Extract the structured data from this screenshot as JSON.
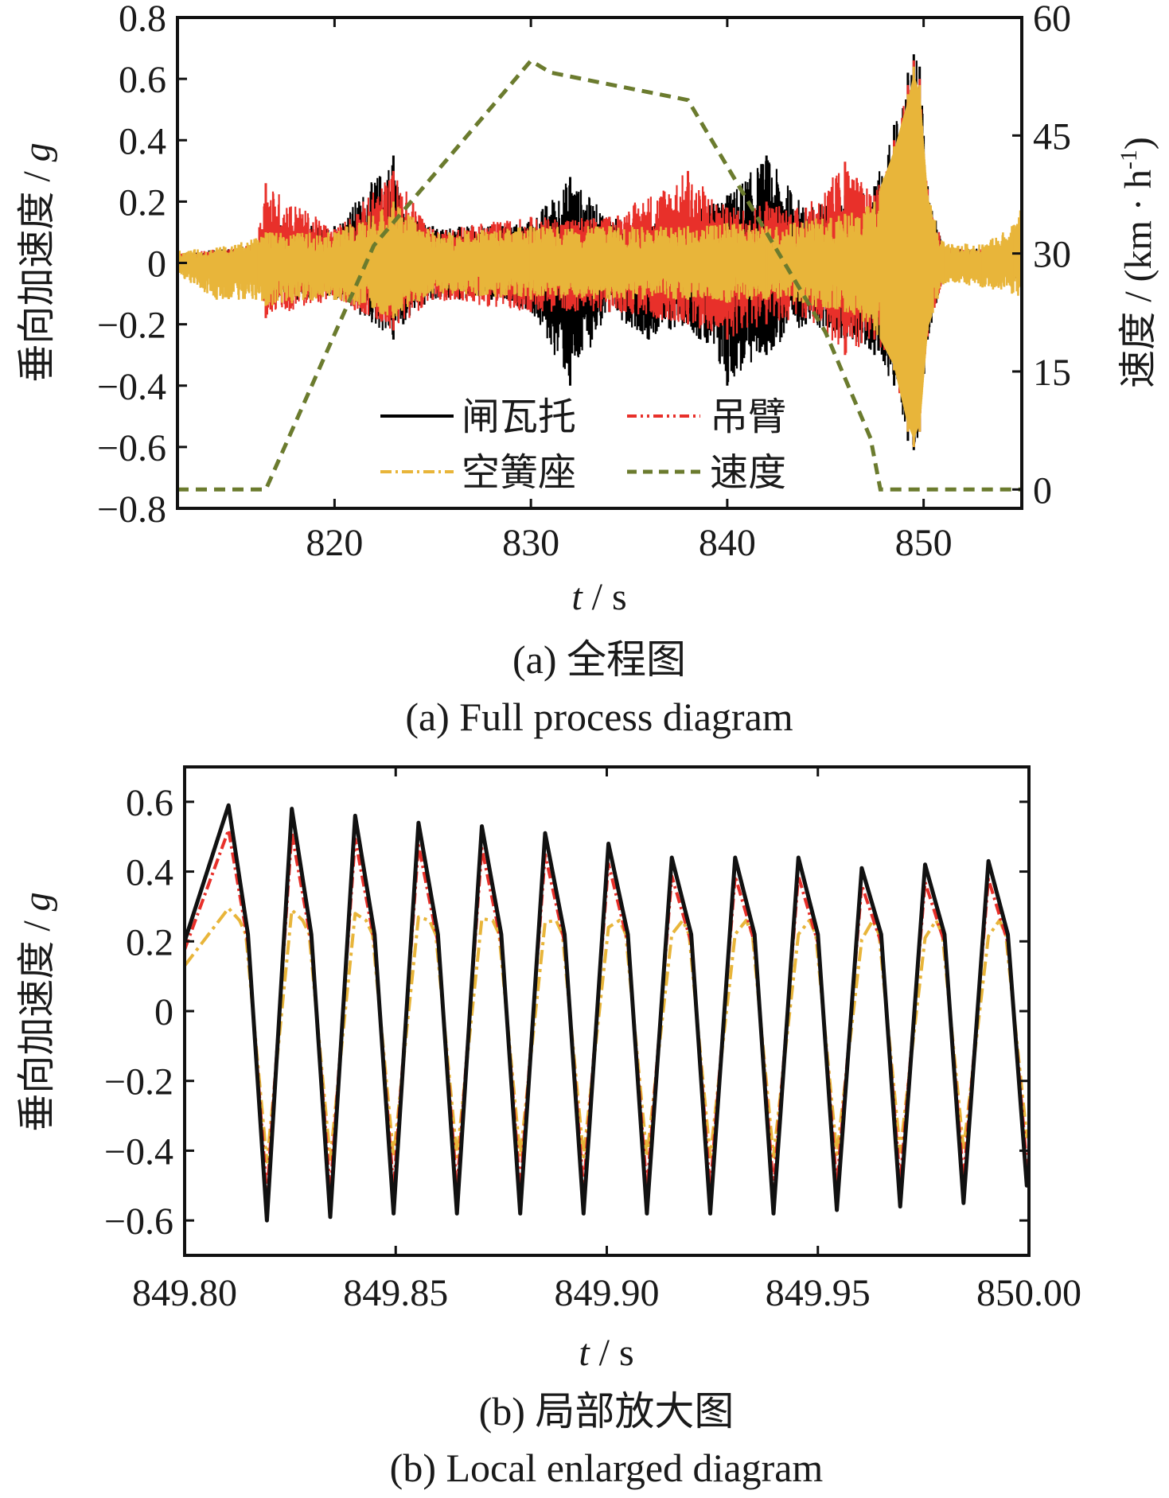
{
  "chart_data": [
    {
      "type": "line",
      "caption_cn": "(a)  全程图",
      "caption_en": "(a)  Full process diagram",
      "xlabel_var": "t",
      "xlabel_unit": " / s",
      "ylabel_left_prefix": "垂向加速度 / ",
      "ylabel_left_var": "g",
      "ylabel_right_prefix": "速度 / (km · h",
      "ylabel_right_sup": "-1",
      "ylabel_right_suffix": ")",
      "xlim": [
        812,
        855
      ],
      "ylim_left": [
        -0.8,
        0.8
      ],
      "ylim_right": [
        -2.4,
        60
      ],
      "xticks": [
        820,
        830,
        840,
        850
      ],
      "xtick_labels": [
        "820",
        "830",
        "840",
        "850"
      ],
      "yticks_left": [
        -0.8,
        -0.6,
        -0.4,
        -0.2,
        0,
        0.2,
        0.4,
        0.6,
        0.8
      ],
      "ytick_labels_left": [
        "−0.8",
        "−0.6",
        "−0.4",
        "−0.2",
        "0",
        "0.2",
        "0.4",
        "0.6",
        "0.8"
      ],
      "yticks_right": [
        0,
        15,
        30,
        45,
        60
      ],
      "ytick_labels_right": [
        "0",
        "15",
        "30",
        "45",
        "60"
      ],
      "legend": [
        {
          "name": "闸瓦托",
          "color": "#000000",
          "dash": "solid"
        },
        {
          "name": "吊臂",
          "color": "#e8302a",
          "dash": "dashdotdot"
        },
        {
          "name": "空簧座",
          "color": "#e8b53a",
          "dash": "dashdot"
        },
        {
          "name": "速度",
          "color": "#6b7b2e",
          "dash": "dashed"
        }
      ],
      "series_envelopes": [
        {
          "name": "闸瓦托",
          "color": "#000000",
          "x": [
            812,
            816,
            816.5,
            820,
            823,
            823.5,
            825,
            828,
            830,
            832,
            834,
            836,
            838,
            840,
            842,
            844,
            846,
            847.5,
            848.5,
            849.2,
            849.5,
            849.8,
            850.2,
            851,
            855
          ],
          "upper": [
            0.03,
            0.06,
            0.13,
            0.12,
            0.35,
            0.16,
            0.12,
            0.12,
            0.14,
            0.28,
            0.15,
            0.13,
            0.16,
            0.22,
            0.35,
            0.18,
            0.22,
            0.25,
            0.45,
            0.62,
            0.68,
            0.64,
            0.25,
            0.05,
            0.05
          ],
          "lower": [
            -0.03,
            -0.06,
            -0.12,
            -0.12,
            -0.25,
            -0.2,
            -0.12,
            -0.12,
            -0.16,
            -0.4,
            -0.16,
            -0.25,
            -0.2,
            -0.4,
            -0.3,
            -0.2,
            -0.25,
            -0.3,
            -0.4,
            -0.58,
            -0.61,
            -0.55,
            -0.25,
            -0.05,
            -0.05
          ]
        },
        {
          "name": "吊臂",
          "color": "#e8302a",
          "x": [
            812,
            816,
            816.5,
            820,
            823,
            825,
            830,
            834,
            838,
            840,
            842,
            844,
            846,
            847.5,
            848.5,
            849.2,
            849.5,
            849.8,
            850.2,
            851,
            855
          ],
          "upper": [
            0.03,
            0.06,
            0.26,
            0.11,
            0.3,
            0.11,
            0.15,
            0.15,
            0.3,
            0.18,
            0.2,
            0.18,
            0.33,
            0.22,
            0.4,
            0.58,
            0.66,
            0.6,
            0.24,
            0.05,
            0.05
          ],
          "lower": [
            -0.03,
            -0.06,
            -0.18,
            -0.12,
            -0.22,
            -0.12,
            -0.16,
            -0.16,
            -0.2,
            -0.25,
            -0.2,
            -0.18,
            -0.3,
            -0.25,
            -0.35,
            -0.55,
            -0.6,
            -0.55,
            -0.24,
            -0.05,
            -0.05
          ]
        },
        {
          "name": "空簧座",
          "color": "#e8b53a",
          "x": [
            812,
            814,
            816,
            816.5,
            820,
            823,
            825,
            830,
            834,
            838,
            840,
            842,
            846,
            847.5,
            848.5,
            849.2,
            849.5,
            849.8,
            850.2,
            851,
            853,
            854.5,
            855
          ],
          "upper": [
            0.04,
            0.05,
            0.08,
            0.1,
            0.1,
            0.2,
            0.1,
            0.12,
            0.12,
            0.12,
            0.13,
            0.12,
            0.16,
            0.2,
            0.38,
            0.55,
            0.64,
            0.58,
            0.22,
            0.07,
            0.06,
            0.12,
            0.22
          ],
          "lower": [
            -0.04,
            -0.12,
            -0.12,
            -0.14,
            -0.12,
            -0.18,
            -0.1,
            -0.12,
            -0.12,
            -0.12,
            -0.13,
            -0.12,
            -0.16,
            -0.22,
            -0.35,
            -0.55,
            -0.6,
            -0.55,
            -0.22,
            -0.07,
            -0.08,
            -0.1,
            -0.12
          ]
        }
      ],
      "speed_series": {
        "name": "速度",
        "color": "#6b7b2e",
        "x": [
          812,
          816.5,
          822,
          830,
          831,
          838,
          845,
          847.3,
          847.8,
          855
        ],
        "y": [
          0,
          0,
          31,
          54.5,
          53,
          49.5,
          20,
          6.5,
          0,
          0
        ]
      }
    },
    {
      "type": "line",
      "caption_cn": "(b)  局部放大图",
      "caption_en": "(b)  Local enlarged diagram",
      "xlabel_var": "t",
      "xlabel_unit": " / s",
      "ylabel_left_prefix": "垂向加速度 / ",
      "ylabel_left_var": "g",
      "xlim": [
        849.8,
        850.0
      ],
      "ylim": [
        -0.7,
        0.7
      ],
      "xticks": [
        849.8,
        849.85,
        849.9,
        849.95,
        850.0
      ],
      "xtick_labels": [
        "849.80",
        "849.85",
        "849.90",
        "849.95",
        "850.00"
      ],
      "yticks": [
        -0.6,
        -0.4,
        -0.2,
        0,
        0.2,
        0.4,
        0.6
      ],
      "ytick_labels": [
        "−0.6",
        "−0.4",
        "−0.2",
        "0",
        "0.2",
        "0.4",
        "0.6"
      ],
      "period": 0.01515,
      "cycles": [
        {
          "peak_t": 849.8105,
          "peak": 0.59,
          "trough_t": 849.8195,
          "trough": -0.6
        },
        {
          "peak_t": 849.8255,
          "peak": 0.58,
          "trough_t": 849.8345,
          "trough": -0.59
        },
        {
          "peak_t": 849.8405,
          "peak": 0.56,
          "trough_t": 849.8495,
          "trough": -0.58
        },
        {
          "peak_t": 849.8555,
          "peak": 0.54,
          "trough_t": 849.8645,
          "trough": -0.58
        },
        {
          "peak_t": 849.8705,
          "peak": 0.53,
          "trough_t": 849.8795,
          "trough": -0.58
        },
        {
          "peak_t": 849.8855,
          "peak": 0.51,
          "trough_t": 849.8945,
          "trough": -0.58
        },
        {
          "peak_t": 849.9005,
          "peak": 0.48,
          "trough_t": 849.9095,
          "trough": -0.58
        },
        {
          "peak_t": 849.9155,
          "peak": 0.44,
          "trough_t": 849.9245,
          "trough": -0.58
        },
        {
          "peak_t": 849.9305,
          "peak": 0.44,
          "trough_t": 849.9395,
          "trough": -0.58
        },
        {
          "peak_t": 849.9455,
          "peak": 0.44,
          "trough_t": 849.9545,
          "trough": -0.57
        },
        {
          "peak_t": 849.9605,
          "peak": 0.41,
          "trough_t": 849.9695,
          "trough": -0.56
        },
        {
          "peak_t": 849.9755,
          "peak": 0.42,
          "trough_t": 849.9845,
          "trough": -0.55
        },
        {
          "peak_t": 849.9905,
          "peak": 0.43,
          "trough_t": 849.9995,
          "trough": -0.5
        }
      ],
      "series": [
        {
          "name": "闸瓦托",
          "color": "#111111",
          "scale": 1.0,
          "dash": ""
        },
        {
          "name": "吊臂",
          "color": "#e8302a",
          "scale": 0.88,
          "dash": "14 5 3 5"
        },
        {
          "name": "空簧座",
          "color": "#e8b53a",
          "scale": 0.65,
          "dash": "18 6 4 6"
        }
      ]
    }
  ]
}
